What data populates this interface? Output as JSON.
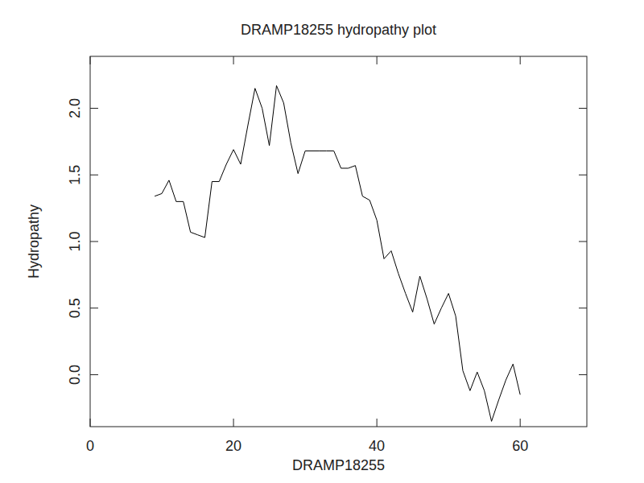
{
  "chart_data": {
    "type": "line",
    "title": "DRAMP18255 hydropathy plot",
    "x_label": "DRAMP18255",
    "y_label": "Hydropathy",
    "x": [
      9,
      10,
      11,
      12,
      13,
      14,
      15,
      16,
      17,
      18,
      19,
      20,
      21,
      22,
      23,
      24,
      25,
      26,
      27,
      28,
      29,
      30,
      31,
      32,
      33,
      34,
      35,
      36,
      37,
      38,
      39,
      40,
      41,
      42,
      43,
      44,
      45,
      46,
      47,
      48,
      49,
      50,
      51,
      52,
      53,
      54,
      55,
      56,
      57,
      58,
      59,
      60
    ],
    "values": [
      1.34,
      1.36,
      1.46,
      1.3,
      1.3,
      1.07,
      1.05,
      1.03,
      1.45,
      1.45,
      1.58,
      1.69,
      1.58,
      1.87,
      2.15,
      2.0,
      1.72,
      2.17,
      2.04,
      1.74,
      1.51,
      1.68,
      1.68,
      1.68,
      1.68,
      1.68,
      1.55,
      1.55,
      1.57,
      1.34,
      1.31,
      1.16,
      0.87,
      0.93,
      0.76,
      0.61,
      0.47,
      0.74,
      0.57,
      0.38,
      0.5,
      0.61,
      0.44,
      0.03,
      -0.12,
      0.02,
      -0.12,
      -0.35,
      -0.19,
      -0.04,
      0.08,
      -0.15
    ],
    "color": "#000000",
    "xlim": [
      0,
      69.3
    ],
    "xticks": [
      0,
      20,
      40,
      60
    ],
    "ylim": [
      -0.39,
      2.39
    ],
    "yticks": [
      {
        "value": 0,
        "label": "0.0"
      },
      0.5,
      {
        "value": 1,
        "label": "1.0"
      },
      1.5,
      {
        "value": 2,
        "label": "2.0"
      }
    ],
    "grid": false
  }
}
